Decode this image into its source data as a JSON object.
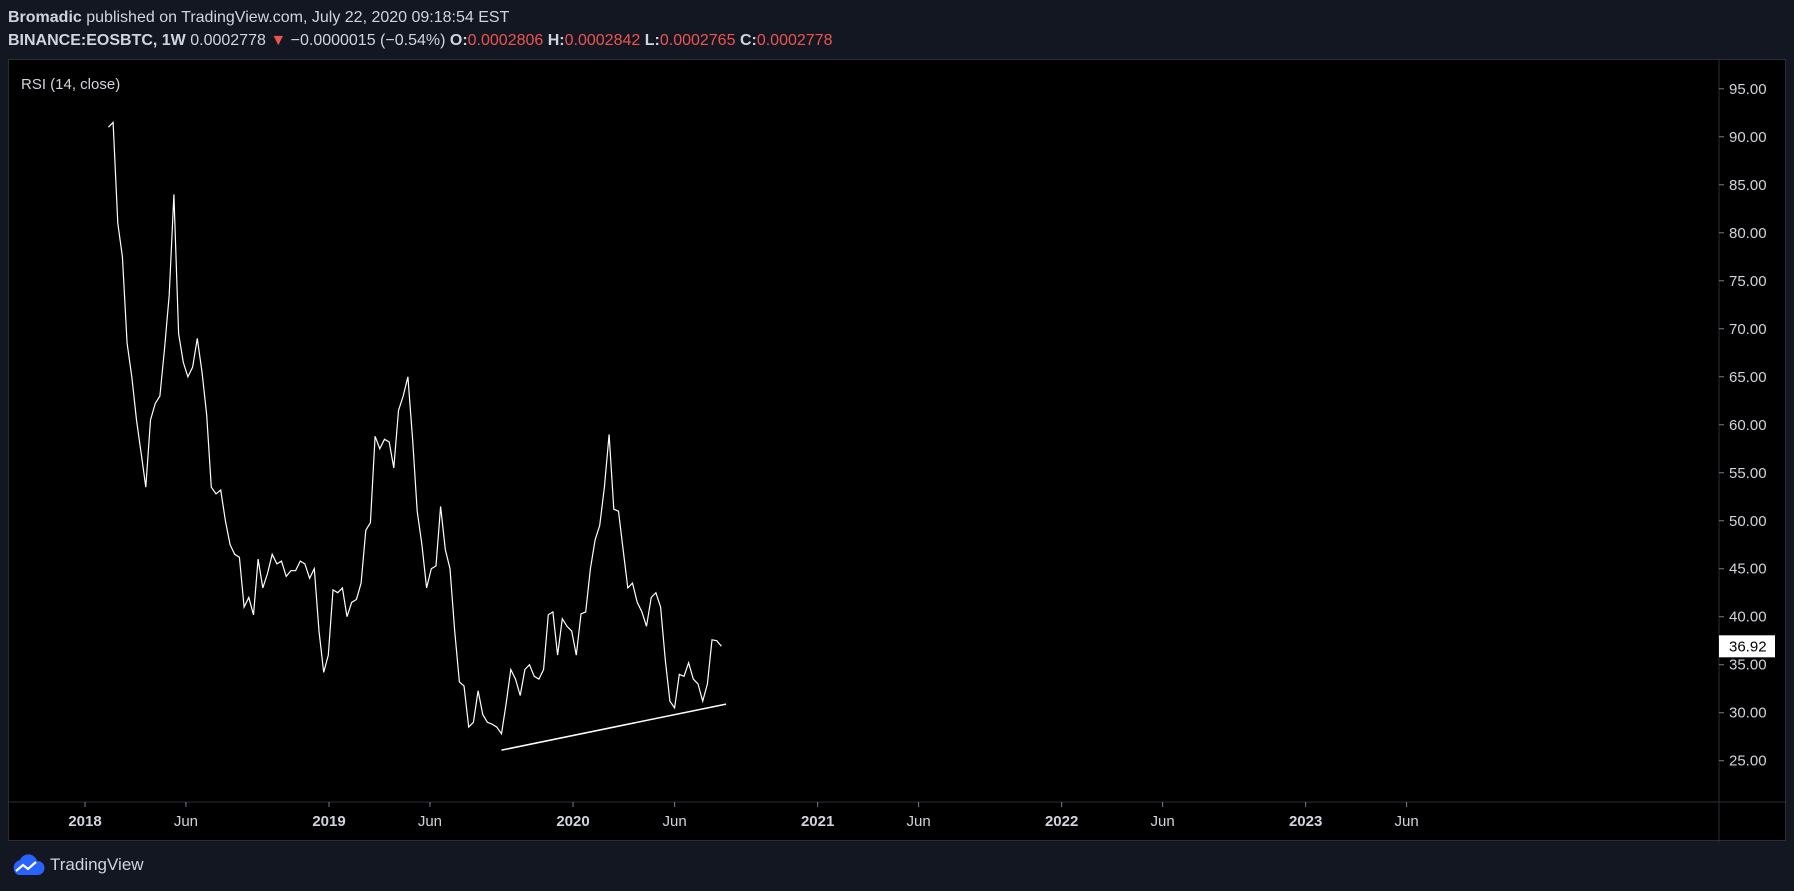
{
  "header": {
    "author": "Bromadic",
    "published_text": "published on TradingView.com, July 22, 2020 09:18:54 EST",
    "symbol": "BINANCE:EOSBTC, 1W",
    "price": "0.0002778",
    "change_arrow": "▼",
    "change": "−0.0000015 (−0.54%)",
    "o_label": "O:",
    "o_value": "0.0002806",
    "h_label": "H:",
    "h_value": "0.0002842",
    "l_label": "L:",
    "l_value": "0.0002765",
    "c_label": "C:",
    "c_value": "0.0002778"
  },
  "footer": {
    "brand": "TradingView",
    "logo_icon": "tradingview-cloud-icon"
  },
  "colors": {
    "background": "#131722",
    "chart_bg": "#000000",
    "line": "#ffffff",
    "down": "#ef5350",
    "axis_text": "#d1d4dc"
  },
  "chart_data": {
    "type": "line",
    "title": "RSI (14, close)",
    "ylim": [
      20.7,
      98
    ],
    "y_ticks": [
      "25.00",
      "30.00",
      "35.00",
      "40.00",
      "45.00",
      "50.00",
      "55.00",
      "60.00",
      "65.00",
      "70.00",
      "75.00",
      "80.00",
      "85.00",
      "90.00",
      "95.00"
    ],
    "x_ticks": [
      {
        "label": "2018",
        "date": "2018-01-01",
        "bold": true
      },
      {
        "label": "Jun",
        "date": "2018-06-01",
        "bold": false
      },
      {
        "label": "2019",
        "date": "2019-01-01",
        "bold": true
      },
      {
        "label": "Jun",
        "date": "2019-06-01",
        "bold": false
      },
      {
        "label": "2020",
        "date": "2020-01-01",
        "bold": true
      },
      {
        "label": "Jun",
        "date": "2020-06-01",
        "bold": false
      },
      {
        "label": "2021",
        "date": "2021-01-01",
        "bold": true
      },
      {
        "label": "Jun",
        "date": "2021-06-01",
        "bold": false
      },
      {
        "label": "2022",
        "date": "2022-01-01",
        "bold": true
      },
      {
        "label": "Jun",
        "date": "2022-06-01",
        "bold": false
      },
      {
        "label": "2023",
        "date": "2023-01-01",
        "bold": true
      },
      {
        "label": "Jun",
        "date": "2023-06-01",
        "bold": false
      }
    ],
    "x_end": "2023-12-01",
    "last_value_label": "36.92",
    "last_value": 36.92,
    "series": [
      {
        "values": [
          [
            "2018-02-05",
            91.0
          ],
          [
            "2018-02-12",
            91.5
          ],
          [
            "2018-02-19",
            81.0
          ],
          [
            "2018-02-26",
            77.5
          ],
          [
            "2018-03-05",
            68.5
          ],
          [
            "2018-03-12",
            65.0
          ],
          [
            "2018-03-19",
            60.5
          ],
          [
            "2018-03-26",
            57.0
          ],
          [
            "2018-04-02",
            53.5
          ],
          [
            "2018-04-09",
            60.5
          ],
          [
            "2018-04-16",
            62.2
          ],
          [
            "2018-04-23",
            63.0
          ],
          [
            "2018-04-30",
            68.0
          ],
          [
            "2018-05-07",
            73.5
          ],
          [
            "2018-05-14",
            84.0
          ],
          [
            "2018-05-21",
            69.5
          ],
          [
            "2018-05-28",
            66.5
          ],
          [
            "2018-06-04",
            65.0
          ],
          [
            "2018-06-11",
            66.0
          ],
          [
            "2018-06-18",
            69.0
          ],
          [
            "2018-06-25",
            65.5
          ],
          [
            "2018-07-02",
            61.0
          ],
          [
            "2018-07-09",
            53.5
          ],
          [
            "2018-07-16",
            52.8
          ],
          [
            "2018-07-23",
            53.2
          ],
          [
            "2018-07-30",
            50.0
          ],
          [
            "2018-08-06",
            47.5
          ],
          [
            "2018-08-13",
            46.5
          ],
          [
            "2018-08-20",
            46.2
          ],
          [
            "2018-08-27",
            41.0
          ],
          [
            "2018-09-03",
            42.0
          ],
          [
            "2018-09-10",
            40.2
          ],
          [
            "2018-09-17",
            46.0
          ],
          [
            "2018-09-24",
            43.0
          ],
          [
            "2018-10-01",
            44.5
          ],
          [
            "2018-10-08",
            46.5
          ],
          [
            "2018-10-15",
            45.5
          ],
          [
            "2018-10-22",
            45.8
          ],
          [
            "2018-10-29",
            44.2
          ],
          [
            "2018-11-05",
            44.8
          ],
          [
            "2018-11-12",
            44.8
          ],
          [
            "2018-11-19",
            45.8
          ],
          [
            "2018-11-26",
            45.5
          ],
          [
            "2018-12-03",
            44.0
          ],
          [
            "2018-12-10",
            45.0
          ],
          [
            "2018-12-17",
            38.5
          ],
          [
            "2018-12-24",
            34.2
          ],
          [
            "2018-12-31",
            36.0
          ],
          [
            "2019-01-07",
            42.8
          ],
          [
            "2019-01-14",
            42.5
          ],
          [
            "2019-01-21",
            43.0
          ],
          [
            "2019-01-28",
            40.0
          ],
          [
            "2019-02-04",
            41.5
          ],
          [
            "2019-02-11",
            41.8
          ],
          [
            "2019-02-18",
            43.5
          ],
          [
            "2019-02-25",
            49.0
          ],
          [
            "2019-03-04",
            49.8
          ],
          [
            "2019-03-11",
            58.8
          ],
          [
            "2019-03-18",
            57.5
          ],
          [
            "2019-03-25",
            58.5
          ],
          [
            "2019-04-01",
            58.2
          ],
          [
            "2019-04-08",
            55.5
          ],
          [
            "2019-04-15",
            61.5
          ],
          [
            "2019-04-22",
            63.0
          ],
          [
            "2019-04-29",
            65.0
          ],
          [
            "2019-05-06",
            58.5
          ],
          [
            "2019-05-13",
            51.0
          ],
          [
            "2019-05-20",
            47.5
          ],
          [
            "2019-05-27",
            43.0
          ],
          [
            "2019-06-03",
            45.0
          ],
          [
            "2019-06-10",
            45.3
          ],
          [
            "2019-06-17",
            51.5
          ],
          [
            "2019-06-24",
            47.0
          ],
          [
            "2019-07-01",
            45.0
          ],
          [
            "2019-07-08",
            38.5
          ],
          [
            "2019-07-15",
            33.2
          ],
          [
            "2019-07-22",
            32.8
          ],
          [
            "2019-07-29",
            28.5
          ],
          [
            "2019-08-05",
            29.0
          ],
          [
            "2019-08-12",
            32.3
          ],
          [
            "2019-08-19",
            29.8
          ],
          [
            "2019-08-26",
            29.0
          ],
          [
            "2019-09-02",
            28.8
          ],
          [
            "2019-09-09",
            28.5
          ],
          [
            "2019-09-16",
            27.8
          ],
          [
            "2019-09-23",
            31.0
          ],
          [
            "2019-09-30",
            34.5
          ],
          [
            "2019-10-07",
            33.5
          ],
          [
            "2019-10-14",
            31.8
          ],
          [
            "2019-10-21",
            34.5
          ],
          [
            "2019-10-28",
            35.0
          ],
          [
            "2019-11-04",
            33.8
          ],
          [
            "2019-11-11",
            33.5
          ],
          [
            "2019-11-18",
            34.5
          ],
          [
            "2019-11-25",
            40.2
          ],
          [
            "2019-12-02",
            40.5
          ],
          [
            "2019-12-09",
            36.0
          ],
          [
            "2019-12-16",
            39.8
          ],
          [
            "2019-12-23",
            39.0
          ],
          [
            "2019-12-30",
            38.5
          ],
          [
            "2020-01-06",
            36.0
          ],
          [
            "2020-01-13",
            40.3
          ],
          [
            "2020-01-20",
            40.5
          ],
          [
            "2020-01-27",
            45.0
          ],
          [
            "2020-02-03",
            48.0
          ],
          [
            "2020-02-10",
            49.5
          ],
          [
            "2020-02-17",
            53.5
          ],
          [
            "2020-02-24",
            59.0
          ],
          [
            "2020-03-02",
            51.2
          ],
          [
            "2020-03-09",
            51.0
          ],
          [
            "2020-03-16",
            47.0
          ],
          [
            "2020-03-23",
            43.0
          ],
          [
            "2020-03-30",
            43.5
          ],
          [
            "2020-04-06",
            41.5
          ],
          [
            "2020-04-13",
            40.5
          ],
          [
            "2020-04-20",
            39.0
          ],
          [
            "2020-04-27",
            42.0
          ],
          [
            "2020-05-04",
            42.5
          ],
          [
            "2020-05-11",
            41.0
          ],
          [
            "2020-05-18",
            35.5
          ],
          [
            "2020-05-25",
            31.2
          ],
          [
            "2020-06-01",
            30.5
          ],
          [
            "2020-06-08",
            34.0
          ],
          [
            "2020-06-15",
            33.8
          ],
          [
            "2020-06-22",
            35.2
          ],
          [
            "2020-06-29",
            33.5
          ],
          [
            "2020-07-06",
            33.0
          ],
          [
            "2020-07-13",
            31.2
          ],
          [
            "2020-07-20",
            33.0
          ],
          [
            "2020-07-27",
            37.6
          ],
          [
            "2020-08-03",
            37.5
          ],
          [
            "2020-08-10",
            36.92
          ]
        ]
      }
    ],
    "trendline": [
      [
        "2019-09-16",
        26.1
      ],
      [
        "2020-08-17",
        30.9
      ]
    ]
  }
}
